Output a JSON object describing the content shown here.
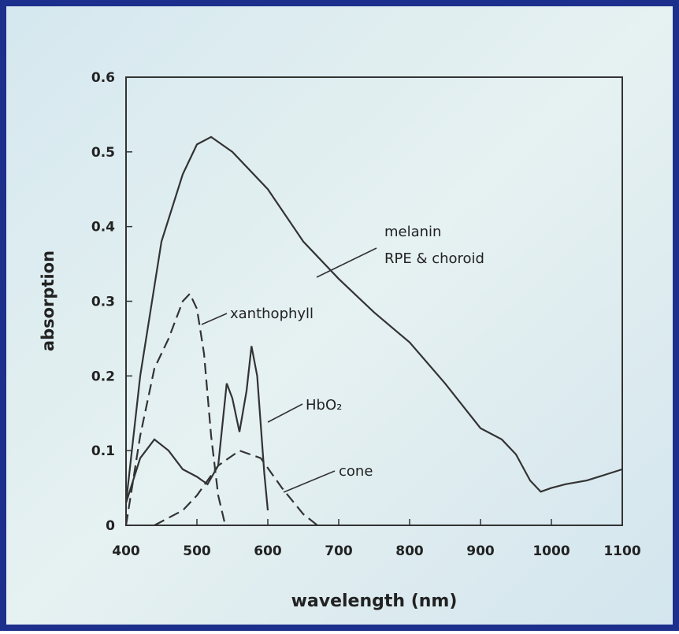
{
  "chart_data": {
    "type": "line",
    "xlabel": "wavelength (nm)",
    "ylabel": "absorption",
    "xlim": [
      400,
      1100
    ],
    "ylim": [
      0,
      0.6
    ],
    "xticks": [
      400,
      500,
      600,
      700,
      800,
      900,
      1000,
      1100
    ],
    "yticks": [
      0,
      0.1,
      0.2,
      0.3,
      0.4,
      0.5,
      0.6
    ],
    "series": [
      {
        "name": "melanin RPE & choroid",
        "label_lines": [
          "melanin",
          "RPE & choroid"
        ],
        "color": "#333333",
        "dash": false,
        "x": [
          400,
          420,
          450,
          480,
          500,
          520,
          550,
          600,
          650,
          700,
          750,
          800,
          850,
          900,
          930,
          950,
          970,
          985,
          1000,
          1020,
          1050,
          1100
        ],
        "values": [
          0.03,
          0.2,
          0.38,
          0.47,
          0.51,
          0.52,
          0.5,
          0.45,
          0.38,
          0.33,
          0.285,
          0.245,
          0.19,
          0.13,
          0.115,
          0.095,
          0.06,
          0.045,
          0.05,
          0.055,
          0.06,
          0.075
        ]
      },
      {
        "name": "xanthophyll",
        "color": "#333333",
        "dash": true,
        "x": [
          400,
          420,
          440,
          460,
          480,
          490,
          500,
          510,
          520,
          530,
          540
        ],
        "values": [
          0.0,
          0.12,
          0.21,
          0.25,
          0.3,
          0.31,
          0.29,
          0.23,
          0.12,
          0.04,
          0.0
        ]
      },
      {
        "name": "HbO₂",
        "color": "#333333",
        "dash": false,
        "x": [
          400,
          420,
          440,
          460,
          480,
          500,
          515,
          530,
          542,
          550,
          560,
          570,
          577,
          585,
          595,
          600
        ],
        "values": [
          0.03,
          0.09,
          0.115,
          0.1,
          0.075,
          0.065,
          0.055,
          0.08,
          0.19,
          0.17,
          0.125,
          0.18,
          0.24,
          0.2,
          0.07,
          0.02
        ]
      },
      {
        "name": "cone",
        "color": "#333333",
        "dash": true,
        "x": [
          440,
          480,
          500,
          530,
          560,
          590,
          620,
          650,
          670
        ],
        "values": [
          0.0,
          0.02,
          0.04,
          0.08,
          0.1,
          0.09,
          0.05,
          0.015,
          0.0
        ]
      }
    ]
  }
}
